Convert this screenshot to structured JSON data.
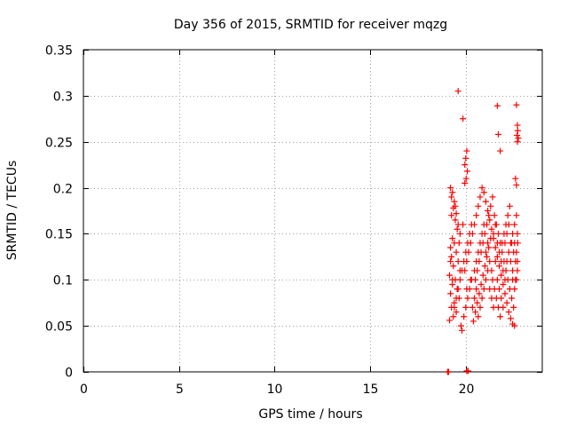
{
  "chart_data": {
    "type": "scatter",
    "title": "Day 356 of 2015, SRMTID for receiver mqzg",
    "xlabel": "GPS time / hours",
    "ylabel": "SRMTID / TECUs",
    "xlim": [
      0,
      24
    ],
    "ylim": [
      0,
      0.35
    ],
    "xticks": [
      0,
      5,
      10,
      15,
      20
    ],
    "xtick_labels": [
      "0",
      "5",
      "10",
      "15",
      "20"
    ],
    "yticks": [
      0,
      0.05,
      0.1,
      0.15,
      0.2,
      0.25,
      0.3,
      0.35
    ],
    "ytick_labels": [
      "0",
      "0.05",
      "0.1",
      "0.15",
      "0.2",
      "0.25",
      "0.3",
      "0.35"
    ],
    "grid": true,
    "marker": "+",
    "marker_color": "#ff0000",
    "series": [
      {
        "name": "mqzg",
        "points": [
          [
            19.05,
            0.0
          ],
          [
            19.08,
            0.0
          ],
          [
            19.1,
            0.0
          ],
          [
            20.05,
            0.001
          ],
          [
            20.12,
            0.001
          ],
          [
            19.6,
            0.305
          ],
          [
            19.85,
            0.275
          ],
          [
            21.65,
            0.289
          ],
          [
            22.65,
            0.29
          ],
          [
            21.7,
            0.258
          ],
          [
            21.8,
            0.24
          ],
          [
            22.7,
            0.268
          ],
          [
            22.72,
            0.262
          ],
          [
            22.68,
            0.257
          ],
          [
            22.75,
            0.254
          ],
          [
            22.7,
            0.25
          ],
          [
            20.05,
            0.24
          ],
          [
            20.0,
            0.232
          ],
          [
            19.95,
            0.225
          ],
          [
            20.08,
            0.218
          ],
          [
            22.6,
            0.21
          ],
          [
            22.65,
            0.203
          ],
          [
            20.02,
            0.21
          ],
          [
            19.95,
            0.205
          ],
          [
            19.2,
            0.2
          ],
          [
            19.3,
            0.195
          ],
          [
            19.25,
            0.19
          ],
          [
            19.4,
            0.185
          ],
          [
            19.35,
            0.178
          ],
          [
            19.5,
            0.172
          ],
          [
            19.45,
            0.165
          ],
          [
            19.6,
            0.16
          ],
          [
            19.55,
            0.155
          ],
          [
            19.7,
            0.15
          ],
          [
            19.3,
            0.145
          ],
          [
            19.4,
            0.14
          ],
          [
            19.2,
            0.135
          ],
          [
            19.5,
            0.13
          ],
          [
            19.25,
            0.125
          ],
          [
            19.6,
            0.12
          ],
          [
            19.35,
            0.115
          ],
          [
            19.7,
            0.11
          ],
          [
            19.15,
            0.105
          ],
          [
            19.45,
            0.1
          ],
          [
            19.3,
            0.095
          ],
          [
            19.55,
            0.09
          ],
          [
            19.2,
            0.085
          ],
          [
            19.65,
            0.08
          ],
          [
            19.4,
            0.075
          ],
          [
            19.25,
            0.07
          ],
          [
            19.5,
            0.065
          ],
          [
            19.35,
            0.06
          ],
          [
            19.15,
            0.056
          ],
          [
            19.75,
            0.05
          ],
          [
            19.8,
            0.045
          ],
          [
            19.9,
            0.06
          ],
          [
            20.0,
            0.07
          ],
          [
            20.1,
            0.08
          ],
          [
            20.2,
            0.09
          ],
          [
            20.3,
            0.1
          ],
          [
            19.95,
            0.11
          ],
          [
            20.05,
            0.12
          ],
          [
            20.15,
            0.13
          ],
          [
            20.25,
            0.14
          ],
          [
            20.35,
            0.15
          ],
          [
            20.45,
            0.16
          ],
          [
            20.55,
            0.17
          ],
          [
            20.65,
            0.18
          ],
          [
            20.75,
            0.19
          ],
          [
            20.85,
            0.2
          ],
          [
            20.95,
            0.195
          ],
          [
            21.05,
            0.185
          ],
          [
            21.15,
            0.175
          ],
          [
            21.25,
            0.165
          ],
          [
            21.35,
            0.155
          ],
          [
            21.45,
            0.145
          ],
          [
            21.55,
            0.135
          ],
          [
            21.65,
            0.125
          ],
          [
            21.75,
            0.115
          ],
          [
            21.85,
            0.105
          ],
          [
            21.95,
            0.095
          ],
          [
            22.05,
            0.085
          ],
          [
            22.15,
            0.075
          ],
          [
            22.25,
            0.065
          ],
          [
            22.35,
            0.058
          ],
          [
            22.45,
            0.052
          ],
          [
            22.55,
            0.05
          ],
          [
            20.4,
            0.055
          ],
          [
            20.5,
            0.065
          ],
          [
            20.6,
            0.075
          ],
          [
            20.7,
            0.085
          ],
          [
            20.8,
            0.095
          ],
          [
            20.9,
            0.105
          ],
          [
            21.0,
            0.115
          ],
          [
            21.1,
            0.125
          ],
          [
            21.2,
            0.135
          ],
          [
            21.3,
            0.145
          ],
          [
            21.4,
            0.1
          ],
          [
            21.5,
            0.09
          ],
          [
            21.6,
            0.08
          ],
          [
            21.7,
            0.07
          ],
          [
            21.8,
            0.06
          ],
          [
            21.9,
            0.14
          ],
          [
            22.0,
            0.15
          ],
          [
            22.1,
            0.16
          ],
          [
            22.2,
            0.17
          ],
          [
            22.3,
            0.18
          ],
          [
            22.4,
            0.14
          ],
          [
            22.5,
            0.13
          ],
          [
            22.6,
            0.12
          ],
          [
            22.7,
            0.11
          ],
          [
            22.65,
            0.1
          ],
          [
            22.55,
            0.16
          ],
          [
            22.45,
            0.15
          ],
          [
            20.45,
            0.11
          ],
          [
            20.55,
            0.12
          ],
          [
            20.65,
            0.13
          ],
          [
            20.75,
            0.14
          ],
          [
            20.85,
            0.15
          ],
          [
            20.95,
            0.16
          ],
          [
            21.05,
            0.1
          ],
          [
            21.15,
            0.11
          ],
          [
            21.25,
            0.09
          ],
          [
            21.35,
            0.08
          ],
          [
            21.45,
            0.07
          ],
          [
            21.55,
            0.12
          ],
          [
            21.65,
            0.14
          ],
          [
            21.75,
            0.13
          ],
          [
            21.85,
            0.12
          ],
          [
            21.95,
            0.11
          ],
          [
            22.05,
            0.1
          ],
          [
            22.15,
            0.12
          ],
          [
            22.25,
            0.13
          ],
          [
            22.35,
            0.14
          ],
          [
            22.45,
            0.1
          ],
          [
            22.55,
            0.09
          ],
          [
            22.65,
            0.13
          ],
          [
            22.7,
            0.15
          ],
          [
            20.3,
            0.16
          ],
          [
            20.2,
            0.15
          ],
          [
            20.1,
            0.14
          ],
          [
            20.0,
            0.13
          ],
          [
            19.9,
            0.12
          ],
          [
            19.8,
            0.11
          ],
          [
            19.7,
            0.1
          ],
          [
            19.6,
            0.09
          ],
          [
            19.5,
            0.08
          ],
          [
            19.4,
            0.07
          ],
          [
            19.3,
            0.1
          ],
          [
            19.2,
            0.12
          ],
          [
            20.5,
            0.1
          ],
          [
            20.6,
            0.11
          ],
          [
            20.7,
            0.12
          ],
          [
            20.8,
            0.13
          ],
          [
            20.9,
            0.14
          ],
          [
            21.0,
            0.15
          ],
          [
            21.1,
            0.16
          ],
          [
            21.2,
            0.17
          ],
          [
            21.3,
            0.18
          ],
          [
            21.4,
            0.19
          ],
          [
            21.5,
            0.17
          ],
          [
            21.6,
            0.16
          ],
          [
            21.7,
            0.15
          ],
          [
            21.8,
            0.14
          ],
          [
            21.9,
            0.13
          ],
          [
            22.0,
            0.12
          ],
          [
            22.1,
            0.11
          ],
          [
            22.2,
            0.1
          ],
          [
            22.3,
            0.09
          ],
          [
            22.4,
            0.08
          ],
          [
            22.5,
            0.07
          ],
          [
            22.6,
            0.1
          ],
          [
            22.7,
            0.12
          ],
          [
            22.72,
            0.14
          ],
          [
            19.25,
            0.17
          ],
          [
            19.45,
            0.18
          ],
          [
            19.65,
            0.14
          ],
          [
            19.85,
            0.16
          ],
          [
            20.05,
            0.09
          ],
          [
            20.25,
            0.1
          ],
          [
            20.35,
            0.07
          ],
          [
            20.45,
            0.08
          ],
          [
            20.55,
            0.09
          ],
          [
            20.65,
            0.06
          ],
          [
            20.75,
            0.07
          ],
          [
            20.85,
            0.08
          ],
          [
            20.95,
            0.09
          ],
          [
            21.05,
            0.13
          ],
          [
            21.15,
            0.14
          ],
          [
            21.25,
            0.12
          ],
          [
            21.35,
            0.11
          ],
          [
            21.45,
            0.15
          ],
          [
            21.55,
            0.16
          ],
          [
            21.65,
            0.1
          ],
          [
            21.75,
            0.09
          ],
          [
            21.85,
            0.08
          ],
          [
            21.95,
            0.07
          ],
          [
            22.05,
            0.14
          ],
          [
            22.15,
            0.15
          ],
          [
            22.25,
            0.16
          ],
          [
            22.35,
            0.12
          ],
          [
            22.45,
            0.11
          ],
          [
            22.55,
            0.14
          ],
          [
            22.65,
            0.17
          ]
        ]
      }
    ]
  }
}
